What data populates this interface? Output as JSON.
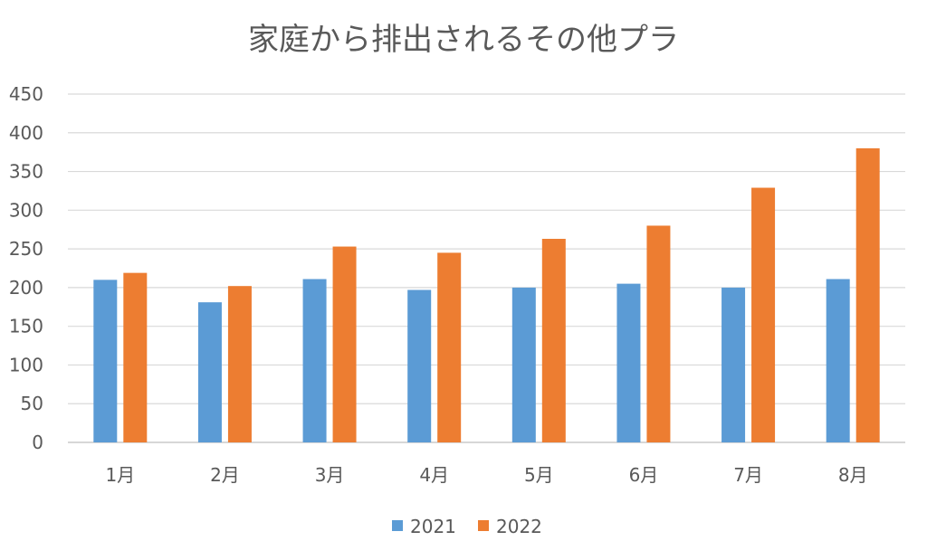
{
  "chart_data": {
    "type": "bar",
    "title": "家庭から排出されるその他プラ",
    "xlabel": "",
    "ylabel": "",
    "categories": [
      "1月",
      "2月",
      "3月",
      "4月",
      "5月",
      "6月",
      "7月",
      "8月"
    ],
    "series": [
      {
        "name": "2021",
        "color": "#5b9bd5",
        "values": [
          210,
          181,
          211,
          197,
          200,
          205,
          200,
          211
        ]
      },
      {
        "name": "2022",
        "color": "#ed7d31",
        "values": [
          219,
          202,
          253,
          245,
          263,
          280,
          329,
          380
        ]
      }
    ],
    "ylim": [
      0,
      450
    ],
    "yticks": [
      "0",
      "50",
      "100",
      "150",
      "200",
      "250",
      "300",
      "350",
      "400",
      "450"
    ],
    "grid": true,
    "legend_position": "bottom"
  }
}
